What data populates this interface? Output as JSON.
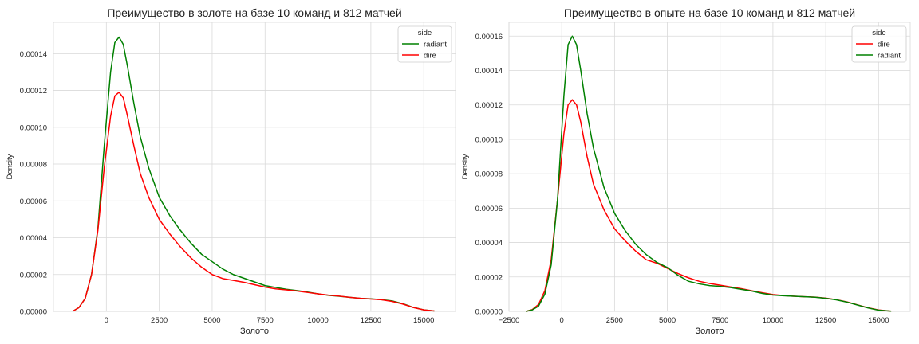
{
  "chart_data": [
    {
      "type": "line",
      "title": "Преимущество в золоте на базе 10 команд и 812 матчей",
      "xlabel": "Золото",
      "ylabel": "Density",
      "xlim": [
        -2500,
        16500
      ],
      "ylim": [
        0,
        0.000157
      ],
      "xticks": [
        0,
        2500,
        5000,
        7500,
        10000,
        12500,
        15000
      ],
      "xtick_labels": [
        "0",
        "2500",
        "5000",
        "7500",
        "10000",
        "12500",
        "15000"
      ],
      "yticks": [
        0,
        2e-05,
        4e-05,
        6e-05,
        8e-05,
        0.0001,
        0.00012,
        0.00014
      ],
      "ytick_labels": [
        "0.00000",
        "0.00002",
        "0.00004",
        "0.00006",
        "0.00008",
        "0.00010",
        "0.00012",
        "0.00014"
      ],
      "grid": true,
      "legend": {
        "title": "side",
        "placement": "top-right"
      },
      "series": [
        {
          "name": "radiant",
          "color": "#008000",
          "x": [
            -1600,
            -1300,
            -1000,
            -700,
            -400,
            -100,
            200,
            400,
            600,
            800,
            1000,
            1300,
            1600,
            2000,
            2500,
            3000,
            3500,
            4000,
            4500,
            5000,
            5500,
            6000,
            6500,
            7000,
            7500,
            8000,
            8500,
            9000,
            9500,
            10000,
            10500,
            11000,
            11500,
            12000,
            12500,
            13000,
            13500,
            14000,
            14500,
            15000,
            15500
          ],
          "y": [
            0,
            2e-06,
            7e-06,
            2e-05,
            4.5e-05,
            9e-05,
            0.00013,
            0.000146,
            0.000149,
            0.000145,
            0.000133,
            0.000113,
            9.5e-05,
            7.8e-05,
            6.2e-05,
            5.2e-05,
            4.4e-05,
            3.7e-05,
            3.1e-05,
            2.7e-05,
            2.3e-05,
            2e-05,
            1.8e-05,
            1.6e-05,
            1.4e-05,
            1.3e-05,
            1.2e-05,
            1.13e-05,
            1.05e-05,
            9.5e-06,
            8.7e-06,
            8.2e-06,
            7.6e-06,
            7.1e-06,
            6.8e-06,
            6.4e-06,
            5.7e-06,
            4.2e-06,
            2.2e-06,
            8e-07,
            2e-07
          ]
        },
        {
          "name": "dire",
          "color": "#ff0000",
          "x": [
            -1600,
            -1300,
            -1000,
            -700,
            -400,
            -100,
            200,
            400,
            600,
            800,
            1000,
            1300,
            1600,
            2000,
            2500,
            3000,
            3500,
            4000,
            4500,
            5000,
            5500,
            6000,
            6500,
            7000,
            7500,
            8000,
            8500,
            9000,
            9500,
            10000,
            10500,
            11000,
            11500,
            12000,
            12500,
            13000,
            13500,
            14000,
            14500,
            15000,
            15500
          ],
          "y": [
            0,
            2e-06,
            7e-06,
            2e-05,
            4.4e-05,
            7.8e-05,
            0.000106,
            0.000117,
            0.000119,
            0.000116,
            0.000106,
            9e-05,
            7.5e-05,
            6.2e-05,
            5e-05,
            4.2e-05,
            3.5e-05,
            2.9e-05,
            2.4e-05,
            2e-05,
            1.78e-05,
            1.68e-05,
            1.58e-05,
            1.45e-05,
            1.32e-05,
            1.22e-05,
            1.17e-05,
            1.11e-05,
            1.03e-05,
            9.5e-06,
            8.8e-06,
            8.3e-06,
            7.6e-06,
            7.1e-06,
            6.7e-06,
            6.3e-06,
            5.4e-06,
            4e-06,
            2.1e-06,
            8e-07,
            2e-07
          ]
        }
      ]
    },
    {
      "type": "line",
      "title": "Преимущество в опыте на базе 10 команд и 812 матчей",
      "xlabel": "Золото",
      "ylabel": "Density",
      "xlim": [
        -2500,
        16500
      ],
      "ylim": [
        0,
        0.000168
      ],
      "xticks": [
        -2500,
        0,
        2500,
        5000,
        7500,
        10000,
        12500,
        15000
      ],
      "xtick_labels": [
        "−2500",
        "0",
        "2500",
        "5000",
        "7500",
        "10000",
        "12500",
        "15000"
      ],
      "yticks": [
        0,
        2e-05,
        4e-05,
        6e-05,
        8e-05,
        0.0001,
        0.00012,
        0.00014,
        0.00016
      ],
      "ytick_labels": [
        "0.00000",
        "0.00002",
        "0.00004",
        "0.00006",
        "0.00008",
        "0.00010",
        "0.00012",
        "0.00014",
        "0.00016"
      ],
      "grid": true,
      "legend": {
        "title": "side",
        "placement": "top-right"
      },
      "series": [
        {
          "name": "dire",
          "color": "#ff0000",
          "x": [
            -1700,
            -1400,
            -1100,
            -800,
            -500,
            -200,
            100,
            300,
            500,
            700,
            900,
            1200,
            1500,
            2000,
            2500,
            3000,
            3500,
            4000,
            4500,
            5000,
            5500,
            6000,
            6500,
            7000,
            7500,
            8000,
            8500,
            9000,
            9500,
            10000,
            10500,
            11000,
            11500,
            12000,
            12500,
            13000,
            13500,
            14000,
            14500,
            15000,
            15600
          ],
          "y": [
            0,
            1e-06,
            4e-06,
            1.2e-05,
            3e-05,
            6.5e-05,
            0.000103,
            0.00012,
            0.000123,
            0.00012,
            0.00011,
            9e-05,
            7.4e-05,
            5.9e-05,
            4.8e-05,
            4.1e-05,
            3.5e-05,
            3e-05,
            2.8e-05,
            2.5e-05,
            2.2e-05,
            1.95e-05,
            1.75e-05,
            1.62e-05,
            1.52e-05,
            1.42e-05,
            1.32e-05,
            1.2e-05,
            1.08e-05,
            9.8e-06,
            9.2e-06,
            8.8e-06,
            8.5e-06,
            8.3e-06,
            7.7e-06,
            6.8e-06,
            5.5e-06,
            3.8e-06,
            2.1e-06,
            8e-07,
            1e-07
          ]
        },
        {
          "name": "radiant",
          "color": "#008000",
          "x": [
            -1700,
            -1400,
            -1100,
            -800,
            -500,
            -200,
            100,
            300,
            500,
            700,
            900,
            1200,
            1500,
            2000,
            2500,
            3000,
            3500,
            4000,
            4500,
            5000,
            5500,
            6000,
            6500,
            7000,
            7500,
            8000,
            8500,
            9000,
            9500,
            10000,
            10500,
            11000,
            11500,
            12000,
            12500,
            13000,
            13500,
            14000,
            14500,
            15000,
            15600
          ],
          "y": [
            0,
            8e-07,
            3e-06,
            1e-05,
            2.7e-05,
            6.5e-05,
            0.000125,
            0.000155,
            0.00016,
            0.000155,
            0.00014,
            0.000115,
            9.5e-05,
            7.2e-05,
            5.7e-05,
            4.7e-05,
            3.9e-05,
            3.3e-05,
            2.85e-05,
            2.55e-05,
            2.1e-05,
            1.75e-05,
            1.6e-05,
            1.5e-05,
            1.45e-05,
            1.38e-05,
            1.28e-05,
            1.18e-05,
            1.04e-05,
            9.5e-06,
            9.1e-06,
            8.8e-06,
            8.5e-06,
            8.2e-06,
            7.6e-06,
            6.7e-06,
            5.4e-06,
            3.7e-06,
            2e-06,
            7e-07,
            1e-07
          ]
        }
      ]
    }
  ]
}
